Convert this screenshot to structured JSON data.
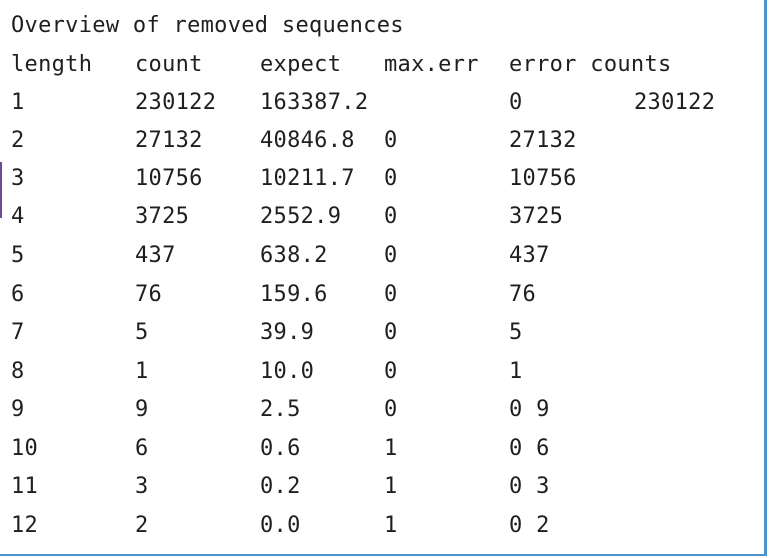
{
  "title": "Overview of removed sequences",
  "header": {
    "length": "length",
    "count": "count",
    "expect": "expect",
    "max_err": "max.err",
    "error_counts": "error counts"
  },
  "rows": [
    {
      "length": "1",
      "count": "230122",
      "expect": "163387.2",
      "max_err": "",
      "error_counts": "0",
      "extra": "230122"
    },
    {
      "length": "2",
      "count": "27132",
      "expect": "40846.8",
      "max_err": "0",
      "error_counts": "27132",
      "extra": ""
    },
    {
      "length": "3",
      "count": "10756",
      "expect": "10211.7",
      "max_err": "0",
      "error_counts": "10756",
      "extra": ""
    },
    {
      "length": "4",
      "count": "3725",
      "expect": "2552.9",
      "max_err": "0",
      "error_counts": "3725",
      "extra": ""
    },
    {
      "length": "5",
      "count": "437",
      "expect": "638.2",
      "max_err": "0",
      "error_counts": "437",
      "extra": ""
    },
    {
      "length": "6",
      "count": "76",
      "expect": "159.6",
      "max_err": "0",
      "error_counts": "76",
      "extra": ""
    },
    {
      "length": "7",
      "count": "5",
      "expect": "39.9",
      "max_err": "0",
      "error_counts": "5",
      "extra": ""
    },
    {
      "length": "8",
      "count": "1",
      "expect": "10.0",
      "max_err": "0",
      "error_counts": "1",
      "extra": ""
    },
    {
      "length": "9",
      "count": "9",
      "expect": "2.5",
      "max_err": "0",
      "error_counts": "0 9",
      "extra": ""
    },
    {
      "length": "10",
      "count": "6",
      "expect": "0.6",
      "max_err": "1",
      "error_counts": "0 6",
      "extra": ""
    },
    {
      "length": "11",
      "count": "3",
      "expect": "0.2",
      "max_err": "1",
      "error_counts": "0 3",
      "extra": ""
    },
    {
      "length": "12",
      "count": "2",
      "expect": "0.0",
      "max_err": "1",
      "error_counts": "0 2",
      "extra": ""
    }
  ]
}
